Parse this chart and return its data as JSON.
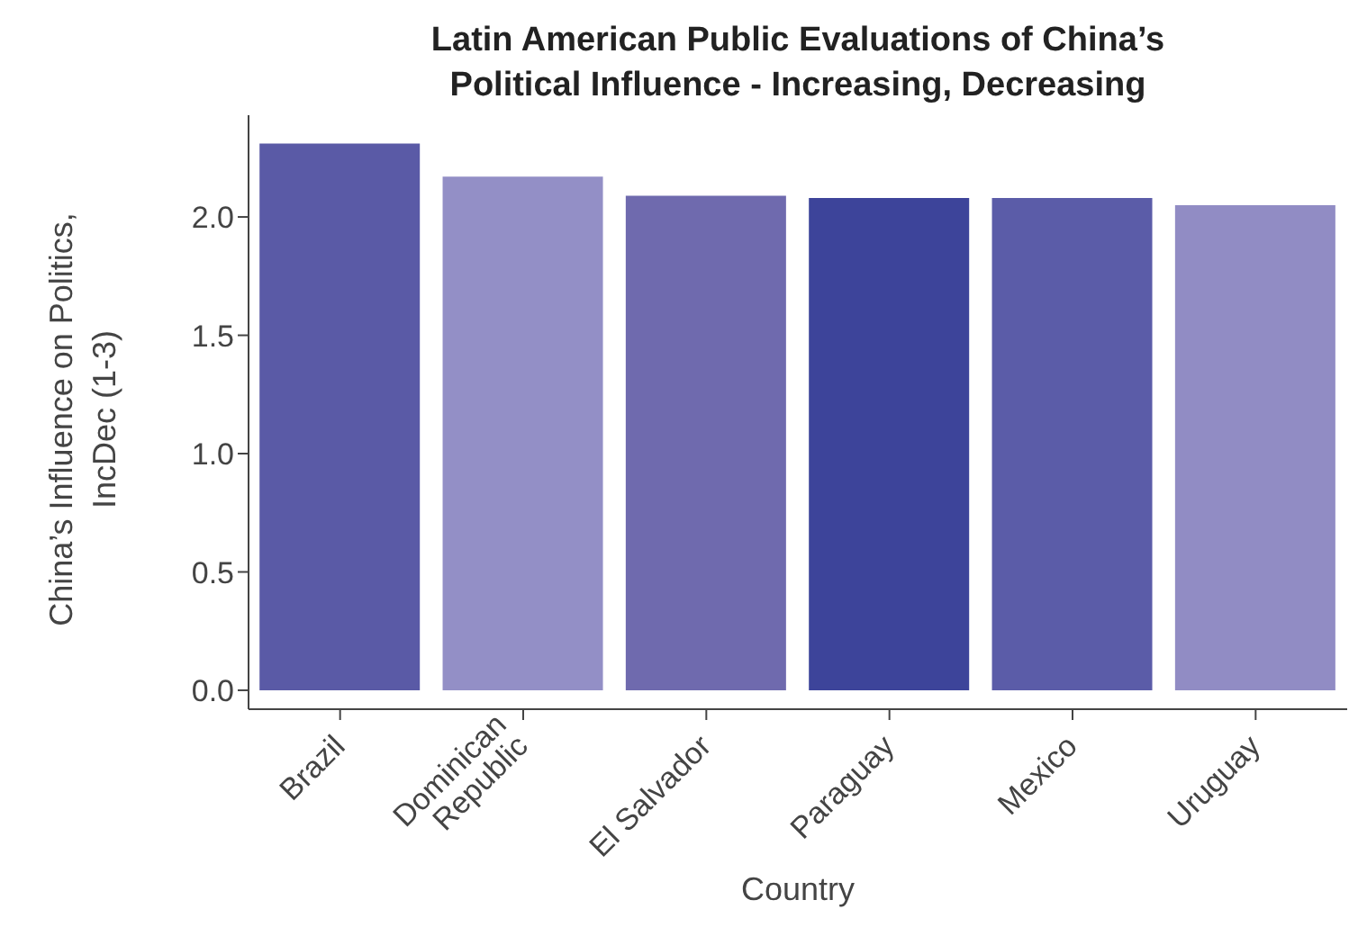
{
  "chart_data": {
    "type": "bar",
    "title": "Latin American Public Evaluations of China’s\nPolitical Influence - Increasing, Decreasing",
    "xlabel": "Country",
    "ylabel": "China’s Influence on Politics,\nIncDec (1-3)",
    "categories": [
      "Brazil",
      "Dominican Republic",
      "El Salvador",
      "Paraguay",
      "Mexico",
      "Uruguay"
    ],
    "values": [
      2.31,
      2.17,
      2.09,
      2.08,
      2.08,
      2.05
    ],
    "colors": [
      "#5a5aa6",
      "#938fc6",
      "#6f6aae",
      "#3d449a",
      "#5b5ca8",
      "#918cc4"
    ],
    "ylim": [
      -0.08,
      2.43
    ],
    "yticks": [
      {
        "value": 0,
        "label": "0.0"
      },
      0.5,
      {
        "value": 1,
        "label": "1.0"
      },
      1.5,
      {
        "value": 2,
        "label": "2.0"
      }
    ],
    "grid": false
  }
}
